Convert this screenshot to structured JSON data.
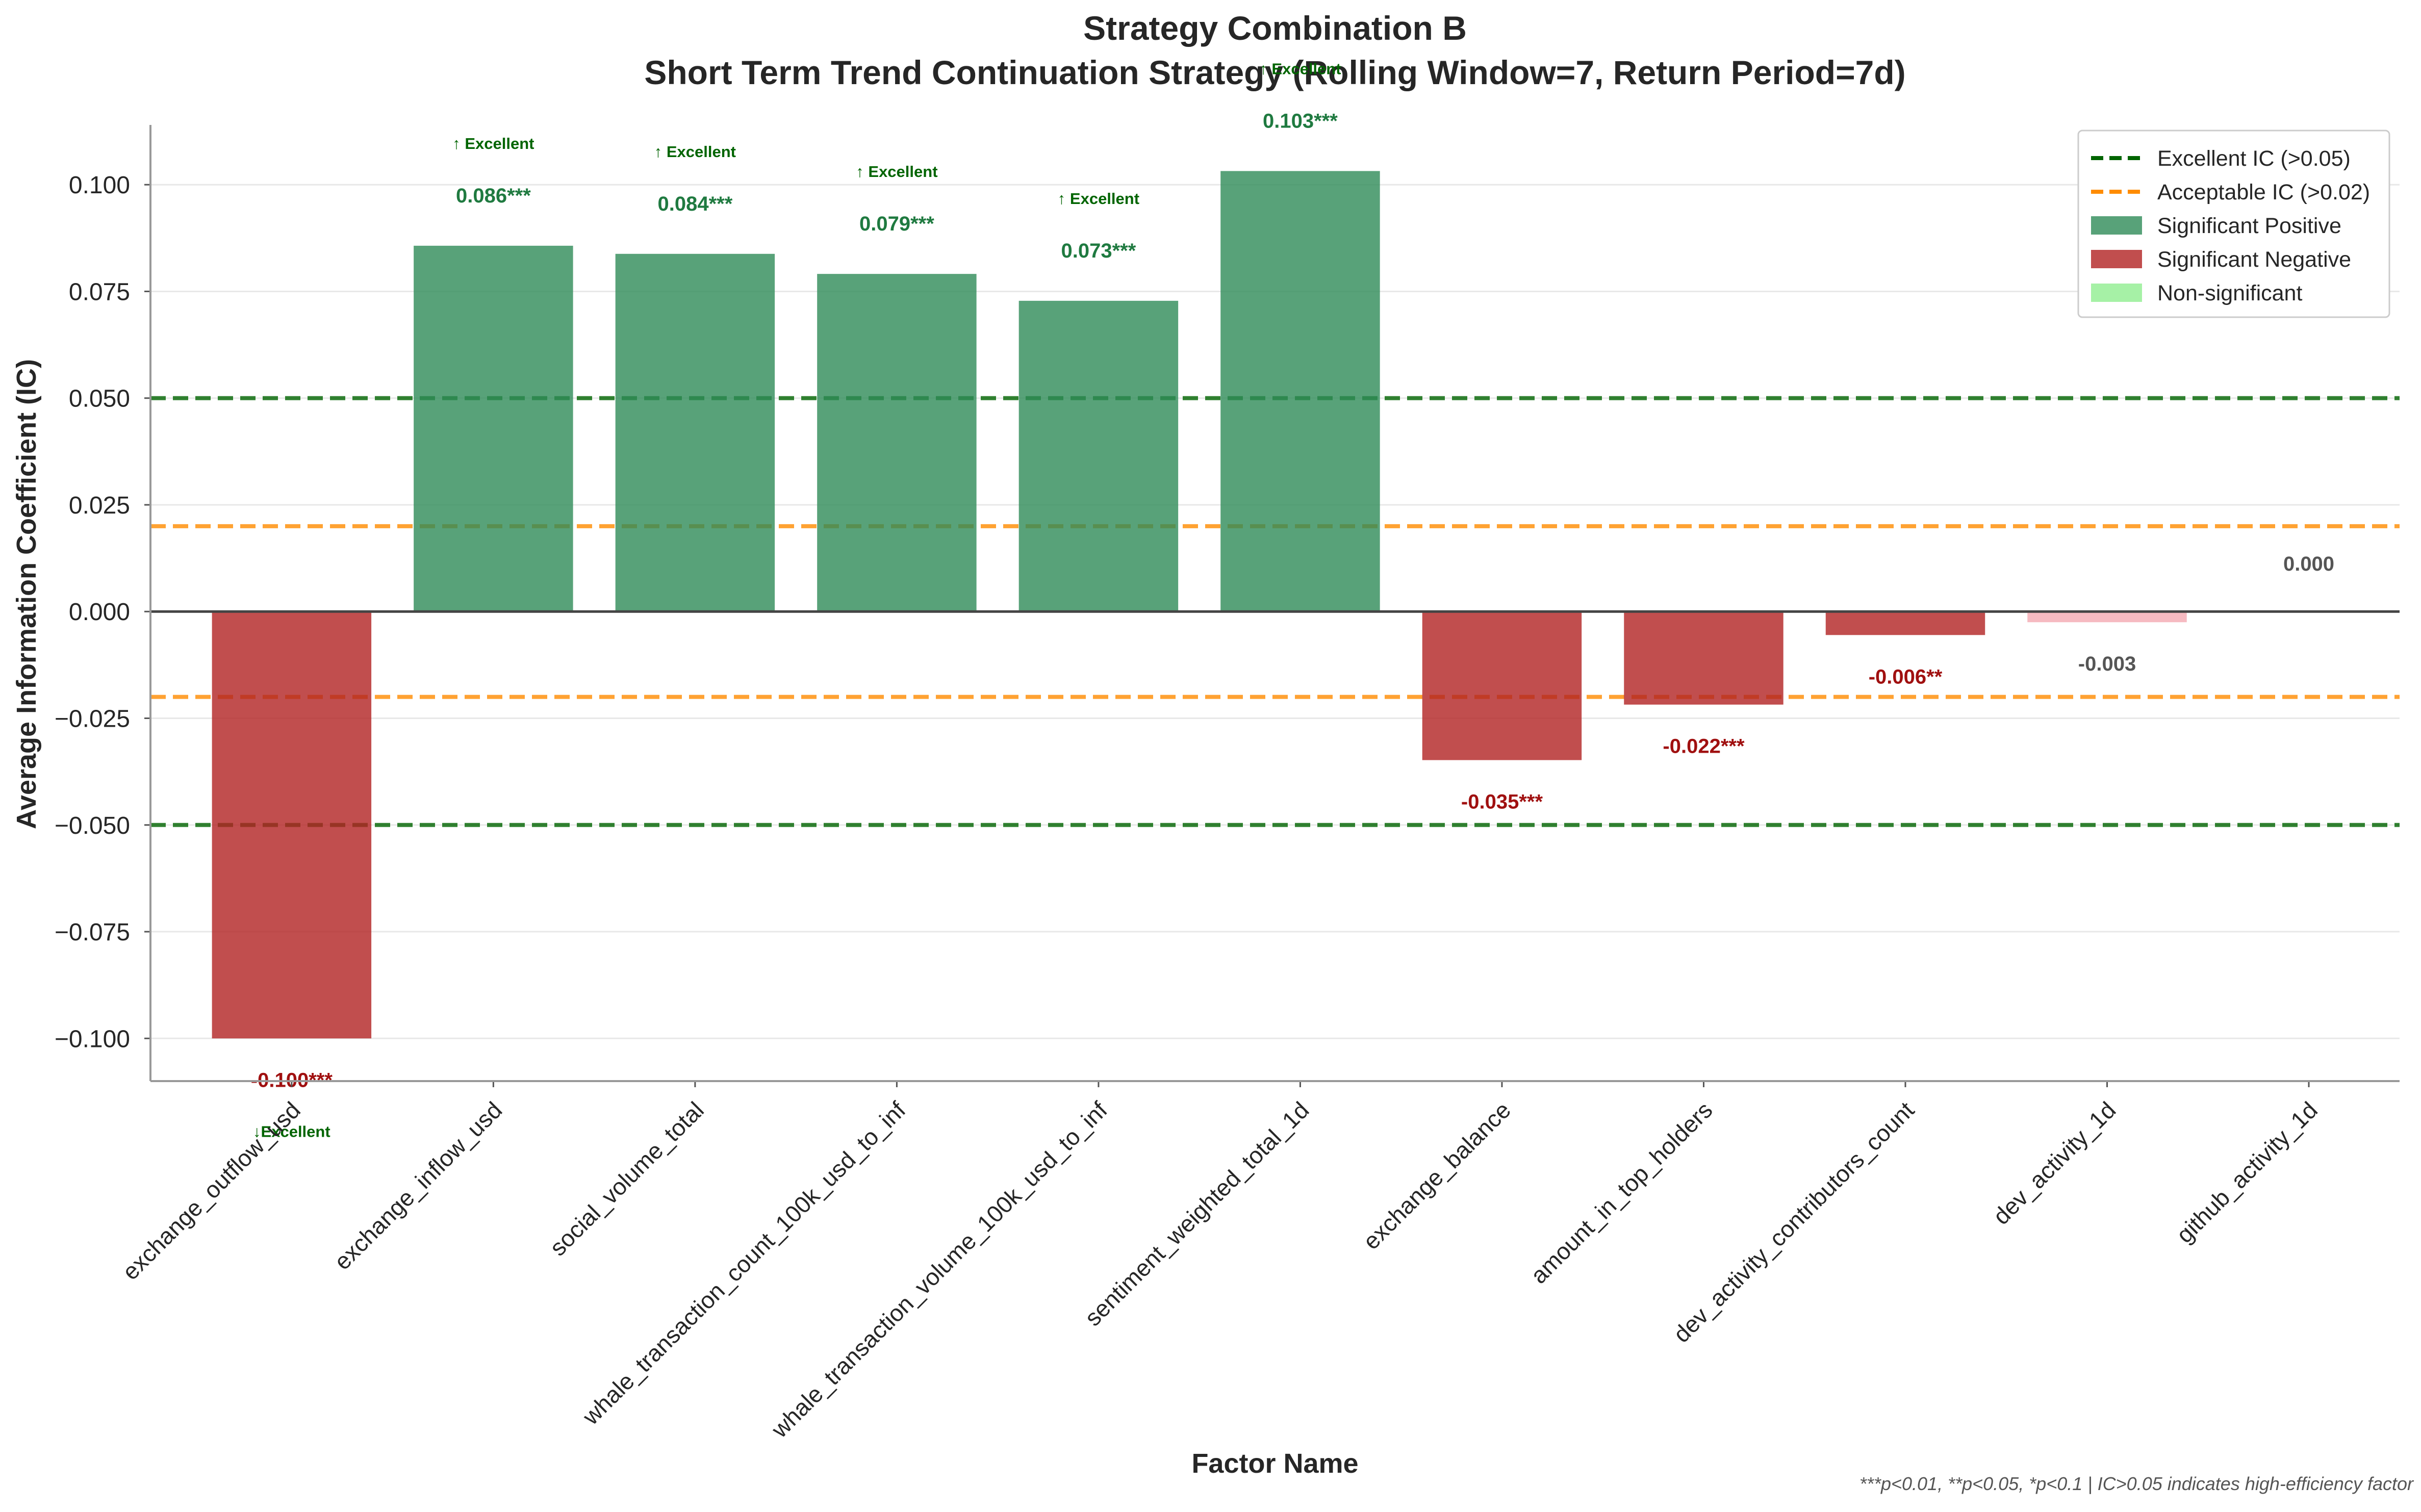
{
  "chart_data": {
    "type": "bar",
    "title": "Strategy Combination B",
    "subtitle": "Short Term Trend Continuation Strategy (Rolling Window=7, Return Period=7d)",
    "xlabel": "Factor Name",
    "ylabel": "Average Information Coefficient (IC)",
    "ylim": [
      -0.11,
      0.114
    ],
    "y_ticks": [
      -0.1,
      -0.075,
      -0.05,
      -0.025,
      0.0,
      0.025,
      0.05,
      0.075,
      0.1
    ],
    "y_tick_labels": [
      "−0.100",
      "−0.075",
      "−0.050",
      "−0.025",
      "0.000",
      "0.025",
      "0.050",
      "0.075",
      "0.100"
    ],
    "grid": "horizontal",
    "categories": [
      "exchange_outflow_usd",
      "exchange_inflow_usd",
      "social_volume_total",
      "whale_transaction_count_100k_usd_to_inf",
      "whale_transaction_volume_100k_usd_to_inf",
      "sentiment_weighted_total_1d",
      "exchange_balance",
      "amount_in_top_holders",
      "dev_activity_contributors_count",
      "dev_activity_1d",
      "github_activity_1d"
    ],
    "values": [
      -0.1,
      0.0857,
      0.0838,
      0.0791,
      0.0728,
      0.1032,
      -0.0348,
      -0.0218,
      -0.0055,
      -0.0025,
      0.0
    ],
    "status": [
      "neg",
      "pos",
      "pos",
      "pos",
      "pos",
      "pos",
      "neg",
      "neg",
      "neg",
      "nonsig-neg",
      "nonsig"
    ],
    "value_labels": [
      "-0.100***",
      "0.086***",
      "0.084***",
      "0.079***",
      "0.073***",
      "0.103***",
      "-0.035***",
      "-0.022***",
      "-0.006**",
      "-0.003",
      "0.000"
    ],
    "tags": [
      "↓Excellent",
      "↑ Excellent",
      "↑ Excellent",
      "↑ Excellent",
      "↑ Excellent",
      "↑ Excellent",
      "",
      "",
      "",
      "",
      ""
    ],
    "reference_lines": [
      {
        "y": 0.05,
        "kind": "excellent"
      },
      {
        "y": -0.05,
        "kind": "excellent"
      },
      {
        "y": 0.02,
        "kind": "acceptable"
      },
      {
        "y": -0.02,
        "kind": "acceptable"
      }
    ],
    "legend": {
      "position": "top-right",
      "entries": [
        {
          "label": "Excellent IC (>0.05)",
          "kind": "line",
          "color": "#006400"
        },
        {
          "label": "Acceptable IC (>0.02)",
          "kind": "line",
          "color": "#ff8c00"
        },
        {
          "label": "Significant Positive",
          "kind": "patch",
          "color": "#2e8b57"
        },
        {
          "label": "Significant Negative",
          "kind": "patch",
          "color": "#b22222"
        },
        {
          "label": "Non-significant",
          "kind": "patch",
          "color": "#90ee90"
        }
      ]
    },
    "colors": {
      "pos": "#2e8b57",
      "neg": "#b22222",
      "nonsig": "#90ee90",
      "nonsig-neg": "#f4a9b2",
      "excellent": "#006400",
      "acceptable": "#ff8c00",
      "pos_text": "#1f7a40",
      "neg_text": "#a01010",
      "nonsig_text": "#555555"
    },
    "footnote": "***p<0.01, **p<0.05, *p<0.1 | IC>0.05 indicates high-efficiency factor"
  }
}
